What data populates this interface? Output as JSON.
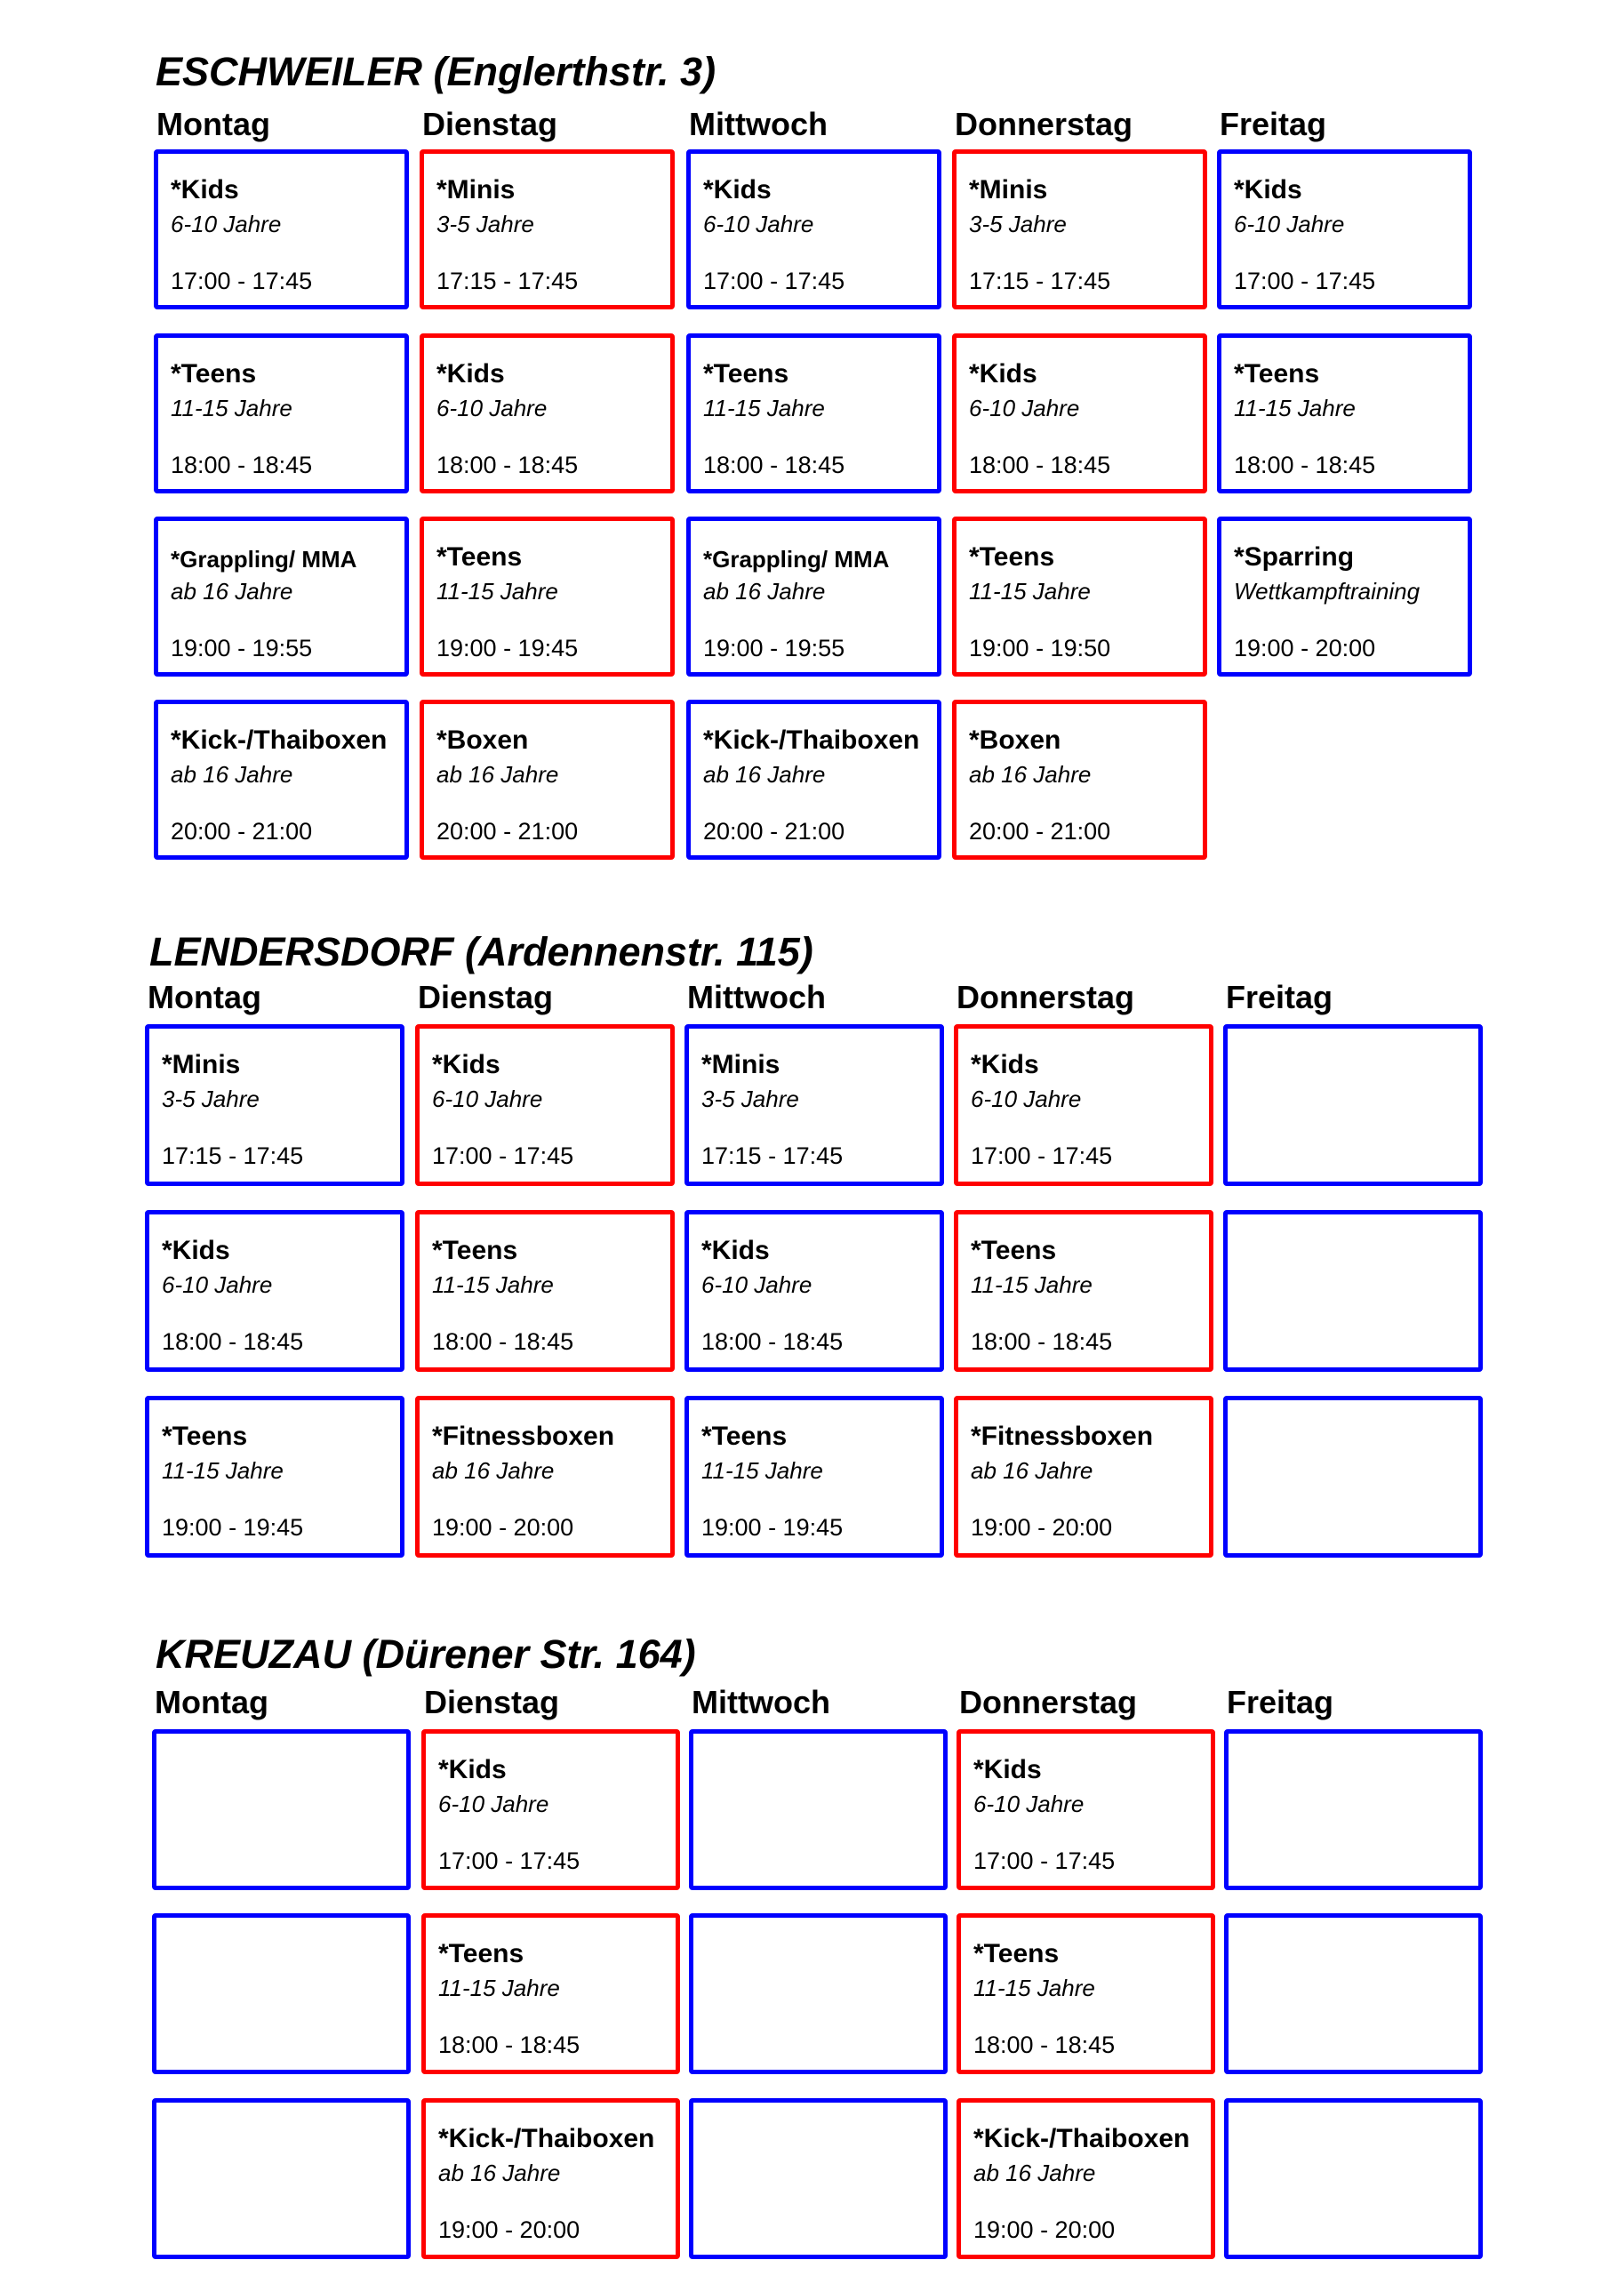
{
  "colors": {
    "blue": "#0000ff",
    "red": "#ff0000"
  },
  "sections": [
    {
      "title": "ESCHWEILER (Englerthstr. 3)",
      "days": [
        "Montag",
        "Dienstag",
        "Mittwoch",
        "Donnerstag",
        "Freitag"
      ],
      "rows": [
        [
          {
            "name": "*Kids",
            "age": "6-10 Jahre",
            "time": "17:00 - 17:45",
            "color": "blue"
          },
          {
            "name": "*Minis",
            "age": "3-5 Jahre",
            "time": "17:15 - 17:45",
            "color": "red"
          },
          {
            "name": "*Kids",
            "age": "6-10 Jahre",
            "time": "17:00 - 17:45",
            "color": "blue"
          },
          {
            "name": "*Minis",
            "age": "3-5 Jahre",
            "time": "17:15 - 17:45",
            "color": "red"
          },
          {
            "name": "*Kids",
            "age": "6-10 Jahre",
            "time": "17:00 - 17:45",
            "color": "blue"
          }
        ],
        [
          {
            "name": "*Teens",
            "age": "11-15 Jahre",
            "time": "18:00 - 18:45",
            "color": "blue"
          },
          {
            "name": "*Kids",
            "age": "6-10 Jahre",
            "time": "18:00 - 18:45",
            "color": "red"
          },
          {
            "name": "*Teens",
            "age": "11-15 Jahre",
            "time": "18:00 - 18:45",
            "color": "blue"
          },
          {
            "name": "*Kids",
            "age": "6-10 Jahre",
            "time": "18:00 - 18:45",
            "color": "red"
          },
          {
            "name": "*Teens",
            "age": "11-15 Jahre",
            "time": "18:00 - 18:45",
            "color": "blue"
          }
        ],
        [
          {
            "name": "*Grappling/ MMA",
            "age": "ab 16 Jahre",
            "time": "19:00 - 19:55",
            "color": "blue"
          },
          {
            "name": "*Teens",
            "age": "11-15 Jahre",
            "time": "19:00 - 19:45",
            "color": "red"
          },
          {
            "name": "*Grappling/ MMA",
            "age": "ab 16 Jahre",
            "time": "19:00 - 19:55",
            "color": "blue"
          },
          {
            "name": "*Teens",
            "age": "11-15 Jahre",
            "time": "19:00 - 19:50",
            "color": "red"
          },
          {
            "name": "*Sparring",
            "age": "Wettkampftraining",
            "time": "19:00 - 20:00",
            "color": "blue"
          }
        ],
        [
          {
            "name": "*Kick-/Thaiboxen",
            "age": "ab 16 Jahre",
            "time": "20:00 - 21:00",
            "color": "blue"
          },
          {
            "name": "*Boxen",
            "age": "ab 16 Jahre",
            "time": "20:00 - 21:00",
            "color": "red"
          },
          {
            "name": "*Kick-/Thaiboxen",
            "age": "ab 16 Jahre",
            "time": "20:00 - 21:00",
            "color": "blue"
          },
          {
            "name": "*Boxen",
            "age": "ab 16 Jahre",
            "time": "20:00 - 21:00",
            "color": "red"
          },
          null
        ]
      ]
    },
    {
      "title": "LENDERSDORF (Ardennenstr. 115)",
      "days": [
        "Montag",
        "Dienstag",
        "Mittwoch",
        "Donnerstag",
        "Freitag"
      ],
      "rows": [
        [
          {
            "name": "*Minis",
            "age": "3-5 Jahre",
            "time": "17:15 - 17:45",
            "color": "blue"
          },
          {
            "name": "*Kids",
            "age": "6-10 Jahre",
            "time": "17:00 - 17:45",
            "color": "red"
          },
          {
            "name": "*Minis",
            "age": "3-5 Jahre",
            "time": "17:15 - 17:45",
            "color": "blue"
          },
          {
            "name": "*Kids",
            "age": "6-10 Jahre",
            "time": "17:00 - 17:45",
            "color": "red"
          },
          {
            "color": "blue"
          }
        ],
        [
          {
            "name": "*Kids",
            "age": "6-10 Jahre",
            "time": "18:00 - 18:45",
            "color": "blue"
          },
          {
            "name": "*Teens",
            "age": "11-15 Jahre",
            "time": "18:00 - 18:45",
            "color": "red"
          },
          {
            "name": "*Kids",
            "age": "6-10 Jahre",
            "time": "18:00 - 18:45",
            "color": "blue"
          },
          {
            "name": "*Teens",
            "age": "11-15 Jahre",
            "time": "18:00 - 18:45",
            "color": "red"
          },
          {
            "color": "blue"
          }
        ],
        [
          {
            "name": "*Teens",
            "age": "11-15 Jahre",
            "time": "19:00 - 19:45",
            "color": "blue"
          },
          {
            "name": "*Fitnessboxen",
            "age": "ab 16 Jahre",
            "time": "19:00 - 20:00",
            "color": "red"
          },
          {
            "name": "*Teens",
            "age": "11-15 Jahre",
            "time": "19:00 - 19:45",
            "color": "blue"
          },
          {
            "name": "*Fitnessboxen",
            "age": "ab 16 Jahre",
            "time": "19:00 - 20:00",
            "color": "red"
          },
          {
            "color": "blue"
          }
        ]
      ]
    },
    {
      "title": "KREUZAU (Dürener Str. 164)",
      "days": [
        "Montag",
        "Dienstag",
        "Mittwoch",
        "Donnerstag",
        "Freitag"
      ],
      "rows": [
        [
          {
            "color": "blue"
          },
          {
            "name": "*Kids",
            "age": "6-10 Jahre",
            "time": "17:00 - 17:45",
            "color": "red"
          },
          {
            "color": "blue"
          },
          {
            "name": "*Kids",
            "age": "6-10 Jahre",
            "time": "17:00 - 17:45",
            "color": "red"
          },
          {
            "color": "blue"
          }
        ],
        [
          {
            "color": "blue"
          },
          {
            "name": "*Teens",
            "age": "11-15 Jahre",
            "time": "18:00 - 18:45",
            "color": "red"
          },
          {
            "color": "blue"
          },
          {
            "name": "*Teens",
            "age": "11-15 Jahre",
            "time": "18:00 - 18:45",
            "color": "red"
          },
          {
            "color": "blue"
          }
        ],
        [
          {
            "color": "blue"
          },
          {
            "name": "*Kick-/Thaiboxen",
            "age": "ab 16 Jahre",
            "time": "19:00 - 20:00",
            "color": "red"
          },
          {
            "color": "blue"
          },
          {
            "name": "*Kick-/Thaiboxen",
            "age": "ab 16 Jahre",
            "time": "19:00 - 20:00",
            "color": "red"
          },
          {
            "color": "blue"
          }
        ]
      ]
    }
  ]
}
